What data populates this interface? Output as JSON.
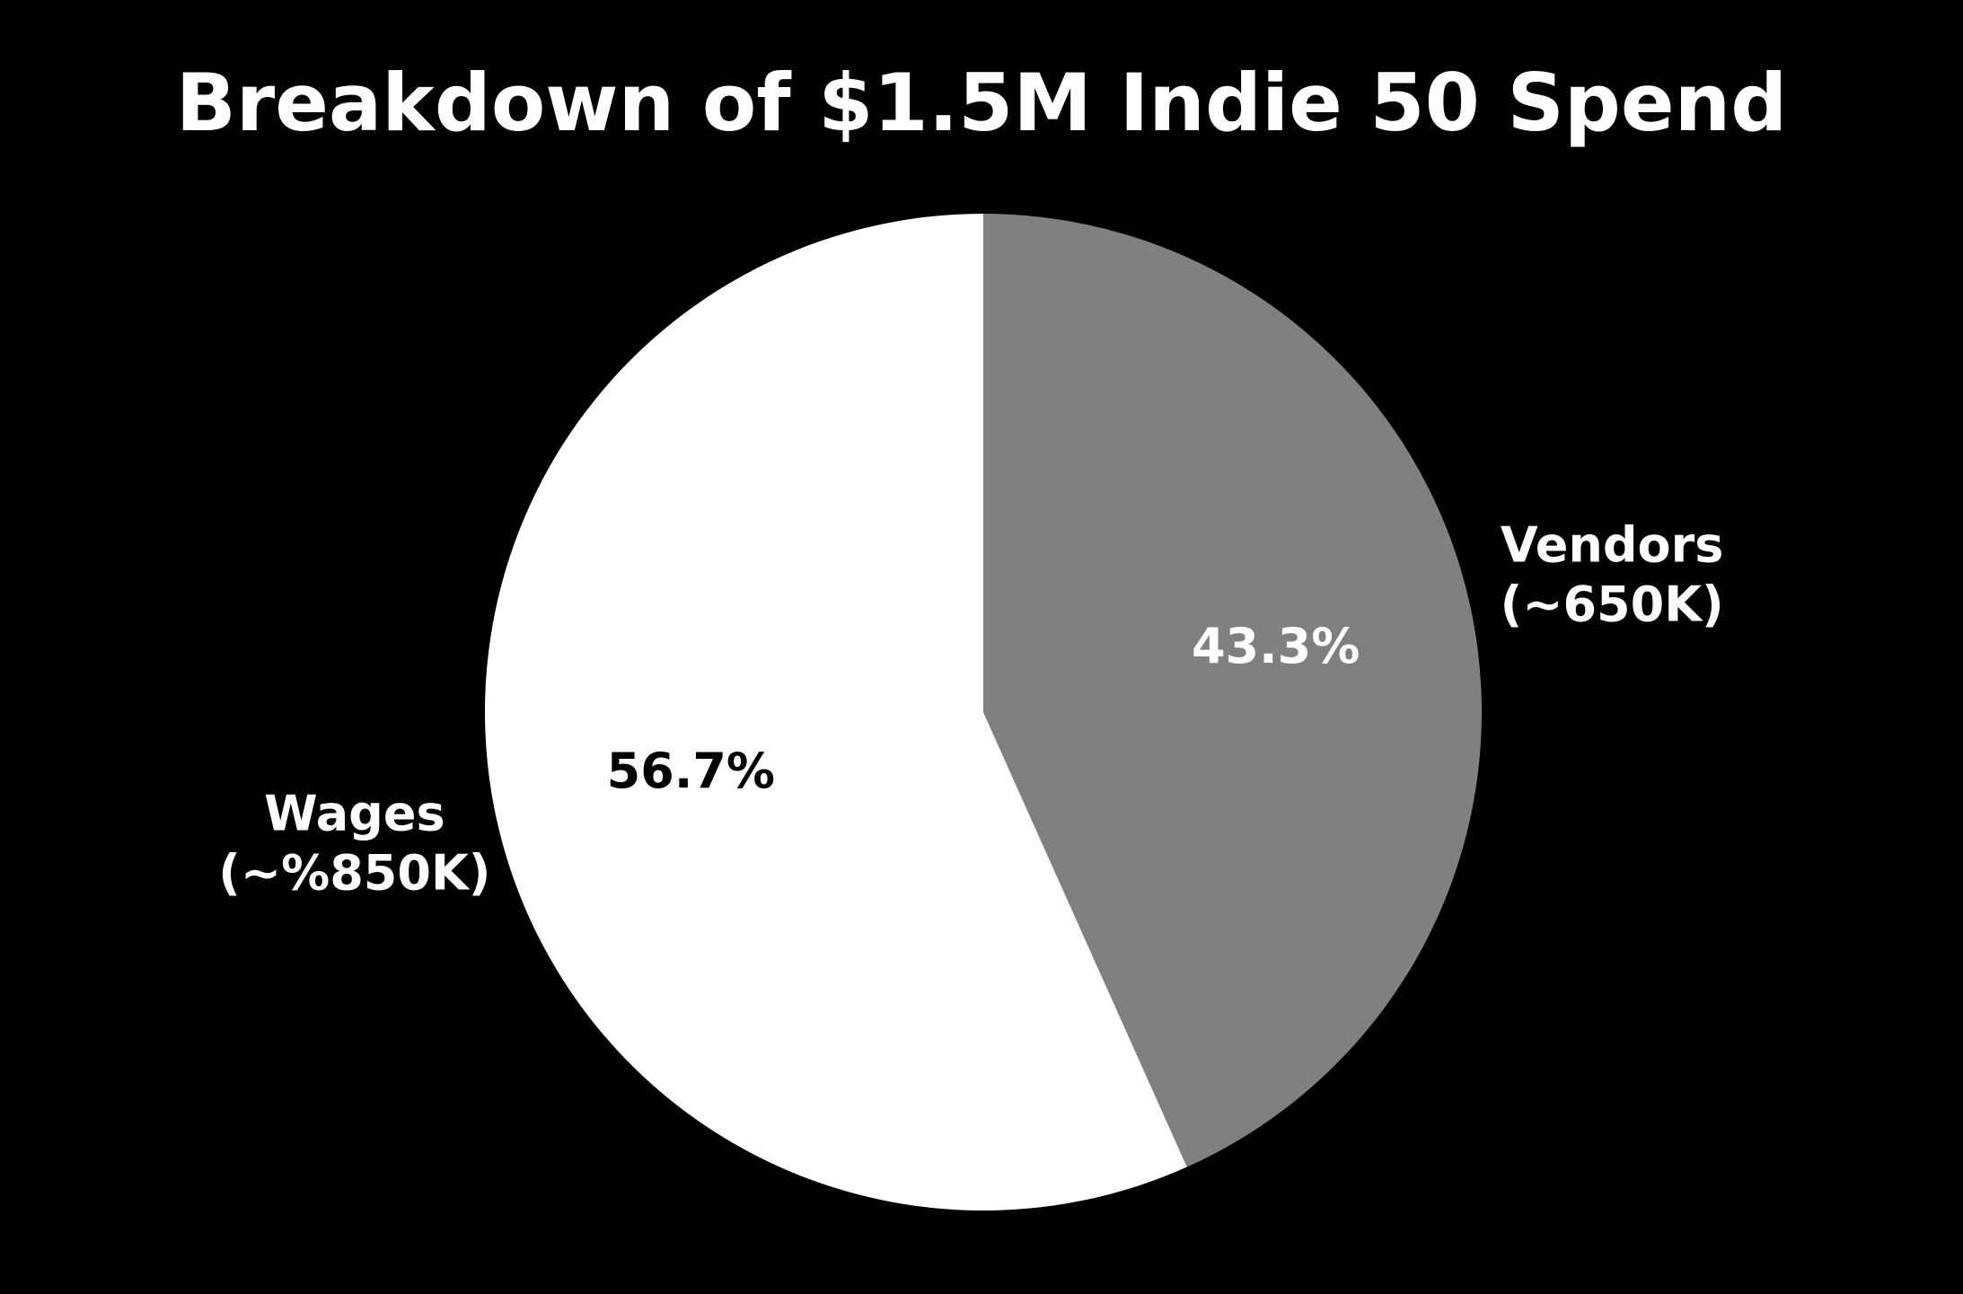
{
  "chart_data": {
    "type": "pie",
    "title": "Breakdown of $1.5M Indie 50 Spend",
    "background": "#000000",
    "slices": [
      {
        "label_line1": "Vendors",
        "label_line2": "(~650K)",
        "value": 43.3,
        "percent_label": "43.3%",
        "color": "#808080",
        "percent_color": "#ffffff"
      },
      {
        "label_line1": "Wages",
        "label_line2": "(~%850K)",
        "value": 56.7,
        "percent_label": "56.7%",
        "color": "#ffffff",
        "percent_color": "#000000"
      }
    ],
    "start_angle": "12 o'clock",
    "direction": "clockwise",
    "legend": "none"
  }
}
